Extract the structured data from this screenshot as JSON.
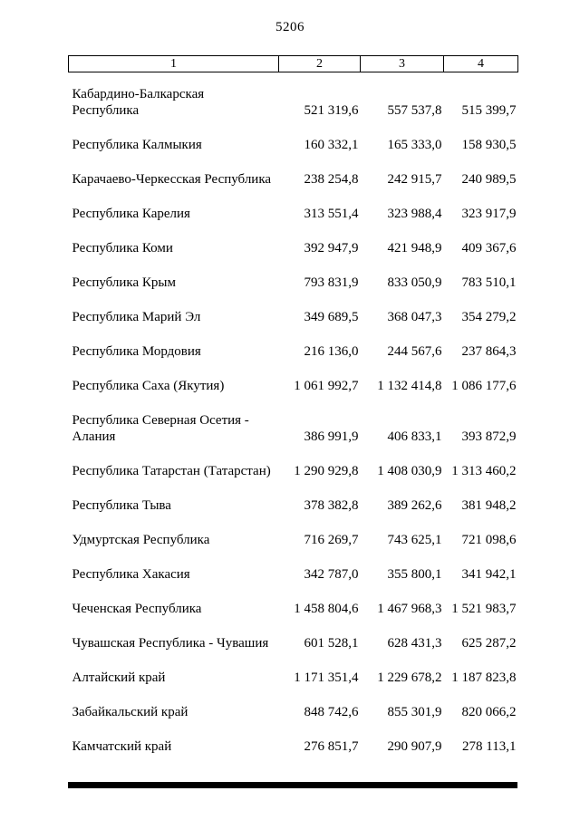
{
  "page_number": "5206",
  "table": {
    "headers": [
      "1",
      "2",
      "3",
      "4"
    ],
    "rows": [
      {
        "name": "Кабардино-Балкарская\nРеспублика",
        "values": [
          "521 319,6",
          "557 537,8",
          "515 399,7"
        ]
      },
      {
        "name": "Республика Калмыкия",
        "values": [
          "160 332,1",
          "165 333,0",
          "158 930,5"
        ]
      },
      {
        "name": "Карачаево-Черкесская Республика",
        "values": [
          "238 254,8",
          "242 915,7",
          "240 989,5"
        ]
      },
      {
        "name": "Республика Карелия",
        "values": [
          "313 551,4",
          "323 988,4",
          "323 917,9"
        ]
      },
      {
        "name": "Республика Коми",
        "values": [
          "392 947,9",
          "421 948,9",
          "409 367,6"
        ]
      },
      {
        "name": "Республика Крым",
        "values": [
          "793 831,9",
          "833 050,9",
          "783 510,1"
        ]
      },
      {
        "name": "Республика Марий Эл",
        "values": [
          "349 689,5",
          "368 047,3",
          "354 279,2"
        ]
      },
      {
        "name": "Республика Мордовия",
        "values": [
          "216 136,0",
          "244 567,6",
          "237 864,3"
        ]
      },
      {
        "name": "Республика Саха (Якутия)",
        "values": [
          "1 061 992,7",
          "1 132 414,8",
          "1 086 177,6"
        ]
      },
      {
        "name": "Республика Северная Осетия -\nАлания",
        "values": [
          "386 991,9",
          "406 833,1",
          "393 872,9"
        ]
      },
      {
        "name": "Республика Татарстан (Татарстан)",
        "values": [
          "1 290 929,8",
          "1 408 030,9",
          "1 313 460,2"
        ]
      },
      {
        "name": "Республика Тыва",
        "values": [
          "378 382,8",
          "389 262,6",
          "381 948,2"
        ]
      },
      {
        "name": "Удмуртская Республика",
        "values": [
          "716 269,7",
          "743 625,1",
          "721 098,6"
        ]
      },
      {
        "name": "Республика Хакасия",
        "values": [
          "342 787,0",
          "355 800,1",
          "341 942,1"
        ]
      },
      {
        "name": "Чеченская Республика",
        "values": [
          "1 458 804,6",
          "1 467 968,3",
          "1 521 983,7"
        ]
      },
      {
        "name": "Чувашская Республика - Чувашия",
        "values": [
          "601 528,1",
          "628 431,3",
          "625 287,2"
        ]
      },
      {
        "name": "Алтайский край",
        "values": [
          "1 171 351,4",
          "1 229 678,2",
          "1 187 823,8"
        ]
      },
      {
        "name": "Забайкальский край",
        "values": [
          "848 742,6",
          "855 301,9",
          "820 066,2"
        ]
      },
      {
        "name": "Камчатский край",
        "values": [
          "276 851,7",
          "290 907,9",
          "278 113,1"
        ]
      }
    ]
  }
}
